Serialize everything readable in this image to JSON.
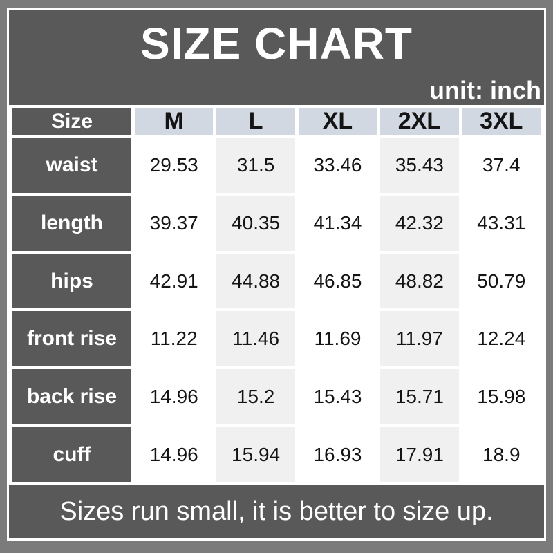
{
  "title": "SIZE CHART",
  "unit_label": "unit: inch",
  "footer_note": "Sizes run small, it is better to size up.",
  "table": {
    "header": [
      "Size",
      "M",
      "L",
      "XL",
      "2XL",
      "3XL"
    ],
    "rows": [
      {
        "label": "waist",
        "values": [
          "29.53",
          "31.5",
          "33.46",
          "35.43",
          "37.4"
        ]
      },
      {
        "label": "length",
        "values": [
          "39.37",
          "40.35",
          "41.34",
          "42.32",
          "43.31"
        ]
      },
      {
        "label": "hips",
        "values": [
          "42.91",
          "44.88",
          "46.85",
          "48.82",
          "50.79"
        ]
      },
      {
        "label": "front rise",
        "values": [
          "11.22",
          "11.46",
          "11.69",
          "11.97",
          "12.24"
        ]
      },
      {
        "label": "back rise",
        "values": [
          "14.96",
          "15.2",
          "15.43",
          "15.71",
          "15.98"
        ]
      },
      {
        "label": "cuff",
        "values": [
          "14.96",
          "15.94",
          "16.93",
          "17.91",
          "18.9"
        ]
      }
    ]
  },
  "colors": {
    "outer_frame": "#7b7b7b",
    "panel_dark": "#595959",
    "header_cell_blue": "#d2d8e1",
    "alt_column_gray": "#f0f0f0",
    "cell_white": "#ffffff",
    "text_light": "#ffffff",
    "text_dark": "#141414"
  },
  "chart_data": {
    "type": "table",
    "title": "SIZE CHART",
    "unit": "inch",
    "columns": [
      "Size",
      "M",
      "L",
      "XL",
      "2XL",
      "3XL"
    ],
    "rows": [
      [
        "waist",
        29.53,
        31.5,
        33.46,
        35.43,
        37.4
      ],
      [
        "length",
        39.37,
        40.35,
        41.34,
        42.32,
        43.31
      ],
      [
        "hips",
        42.91,
        44.88,
        46.85,
        48.82,
        50.79
      ],
      [
        "front rise",
        11.22,
        11.46,
        11.69,
        11.97,
        12.24
      ],
      [
        "back rise",
        14.96,
        15.2,
        15.43,
        15.71,
        15.98
      ],
      [
        "cuff",
        14.96,
        15.94,
        16.93,
        17.91,
        18.9
      ]
    ],
    "note": "Sizes run small, it is better to size up.",
    "layout_hints": {
      "label_column_style": "dark-gray, white bold text",
      "header_row_style": "light blue-gray, black bold text",
      "column_striping": "L and 2XL columns light gray, others white"
    }
  }
}
